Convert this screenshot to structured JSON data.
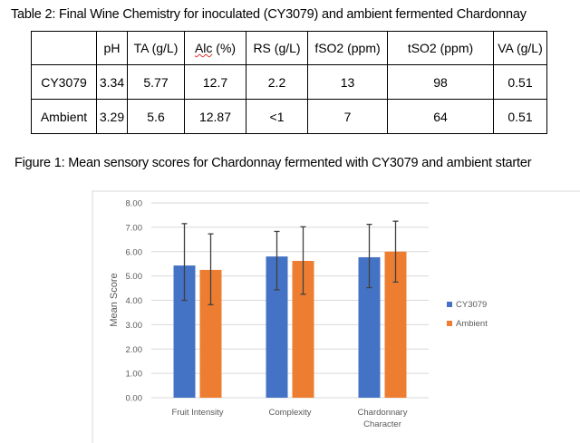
{
  "table": {
    "caption": "Table 2: Final Wine Chemistry for inoculated (CY3079) and ambient fermented Chardonnay",
    "headers": [
      "",
      "pH",
      "TA (g/L)",
      "Alc (%)",
      "RS (g/L)",
      "fSO2 (ppm)",
      "tSO2 (ppm)",
      "VA (g/L)"
    ],
    "rows": [
      [
        "CY3079",
        "3.34",
        "5.77",
        "12.7",
        "2.2",
        "13",
        "98",
        "0.51"
      ],
      [
        "Ambient",
        "3.29",
        "5.6",
        "12.87",
        "<1",
        "7",
        "64",
        "0.51"
      ]
    ]
  },
  "figure": {
    "caption": "Figure 1: Mean sensory scores for Chardonnay fermented with CY3079 and ambient starter"
  },
  "chart_data": {
    "type": "bar",
    "title": "",
    "xlabel": "",
    "ylabel": "Mean Score",
    "ylim": [
      0,
      8
    ],
    "yticks": [
      "0.00",
      "1.00",
      "2.00",
      "3.00",
      "4.00",
      "5.00",
      "6.00",
      "7.00",
      "8.00"
    ],
    "grid": true,
    "legend_position": "right",
    "categories": [
      [
        "Fruit Intensity"
      ],
      [
        "Complexity"
      ],
      [
        "Chardonnary",
        "Character"
      ]
    ],
    "series": [
      {
        "name": "CY3079",
        "color": "#4472C4",
        "values": [
          5.43,
          5.8,
          5.77
        ],
        "error_low": [
          4.0,
          4.43,
          4.52
        ],
        "error_high": [
          7.15,
          6.83,
          7.12
        ]
      },
      {
        "name": "Ambient",
        "color": "#ED7D31",
        "values": [
          5.25,
          5.62,
          6.0
        ],
        "error_low": [
          3.82,
          4.25,
          4.75
        ],
        "error_high": [
          6.73,
          7.02,
          7.25
        ]
      }
    ]
  }
}
